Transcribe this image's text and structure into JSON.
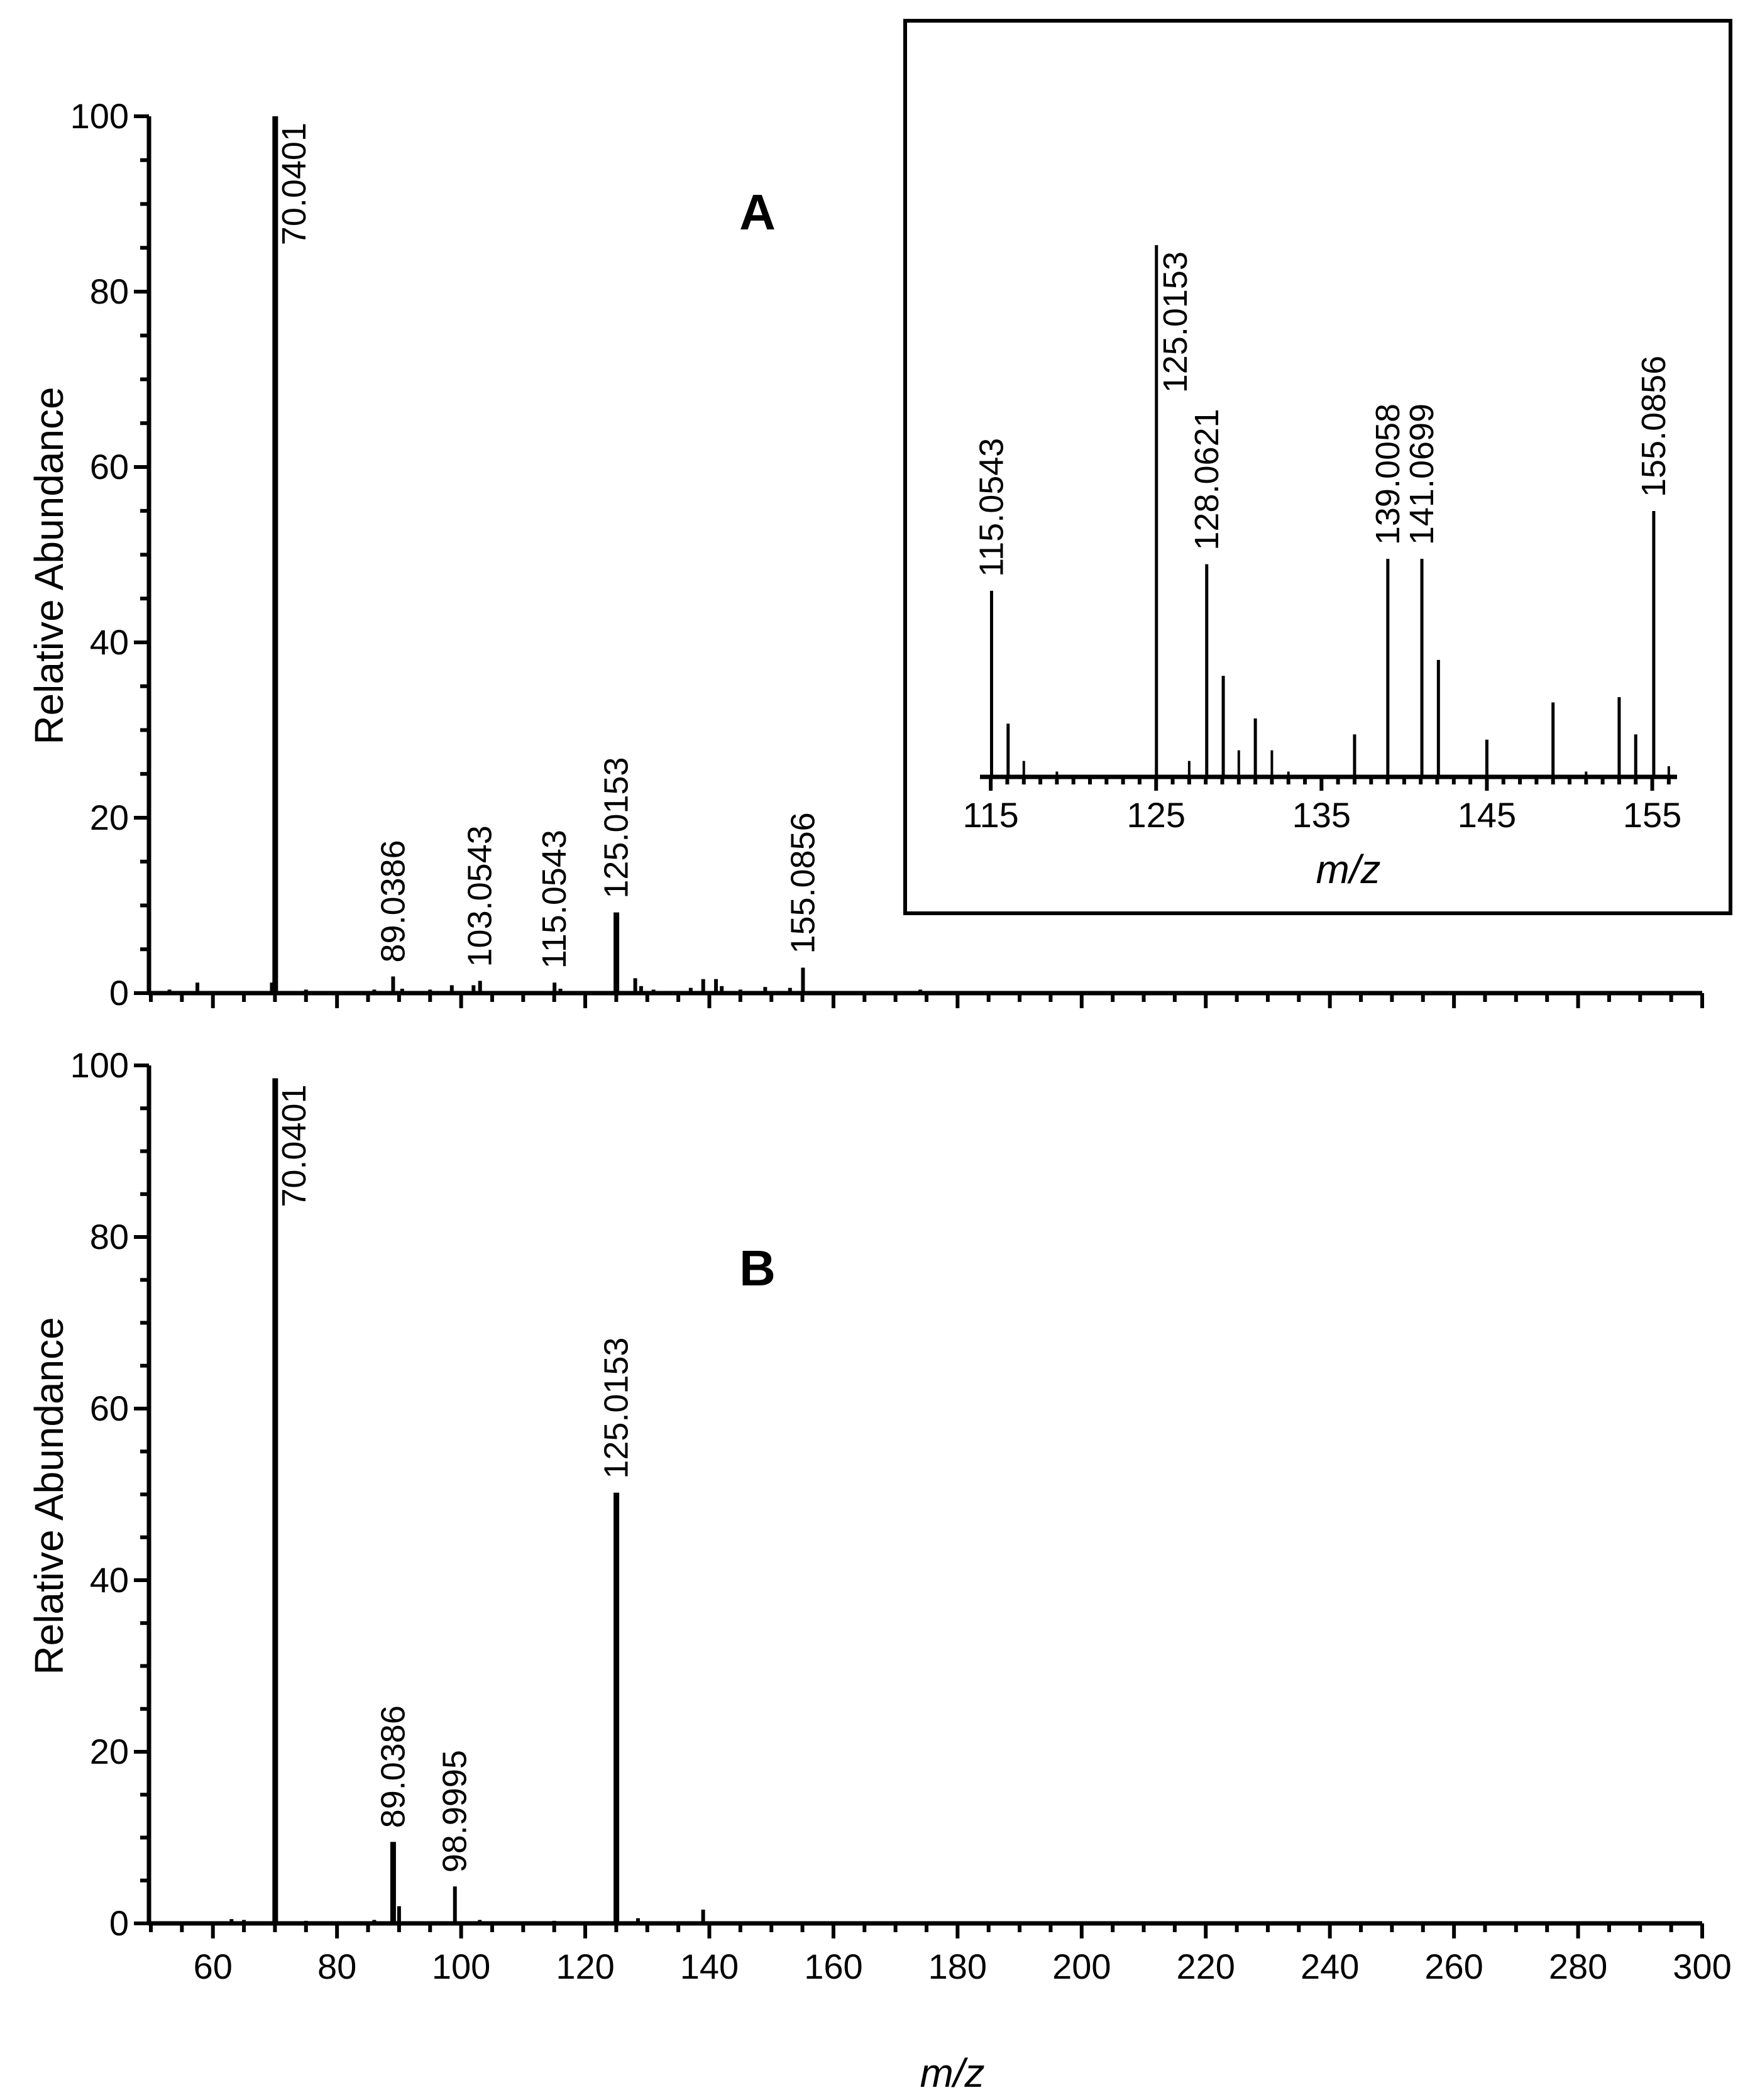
{
  "chart_data": [
    {
      "id": "A",
      "type": "bar",
      "panel_label": "A",
      "ylabel": "Relative Abundance",
      "xlabel": "",
      "xlim": [
        50,
        300
      ],
      "ylim": [
        0,
        100
      ],
      "y_ticks": [
        "0",
        "20",
        "40",
        "60",
        "80",
        "100"
      ],
      "x_ticks": [],
      "peaks": [
        {
          "mz": 53,
          "intensity": 0.4
        },
        {
          "mz": 57.5,
          "intensity": 1.2
        },
        {
          "mz": 69.5,
          "intensity": 1.2
        },
        {
          "mz": 70.04,
          "intensity": 100
        },
        {
          "mz": 75,
          "intensity": 0.4
        },
        {
          "mz": 86,
          "intensity": 0.4
        },
        {
          "mz": 89.04,
          "intensity": 1.9
        },
        {
          "mz": 90.5,
          "intensity": 0.5
        },
        {
          "mz": 95,
          "intensity": 0.4
        },
        {
          "mz": 98.5,
          "intensity": 0.9
        },
        {
          "mz": 102,
          "intensity": 0.9
        },
        {
          "mz": 103.05,
          "intensity": 1.4
        },
        {
          "mz": 115.05,
          "intensity": 1.2
        },
        {
          "mz": 116,
          "intensity": 0.5
        },
        {
          "mz": 125.02,
          "intensity": 9.2
        },
        {
          "mz": 128.06,
          "intensity": 1.7
        },
        {
          "mz": 129,
          "intensity": 0.8
        },
        {
          "mz": 131,
          "intensity": 0.4
        },
        {
          "mz": 137,
          "intensity": 0.6
        },
        {
          "mz": 139.01,
          "intensity": 1.6
        },
        {
          "mz": 141.07,
          "intensity": 1.6
        },
        {
          "mz": 142,
          "intensity": 0.8
        },
        {
          "mz": 145,
          "intensity": 0.4
        },
        {
          "mz": 149,
          "intensity": 0.7
        },
        {
          "mz": 153,
          "intensity": 0.6
        },
        {
          "mz": 155.09,
          "intensity": 2.9
        },
        {
          "mz": 174,
          "intensity": 0.4
        }
      ],
      "labels": [
        {
          "text": "70.0401",
          "mz": 70.04,
          "intensity": 100
        },
        {
          "text": "89.0386",
          "mz": 89.04,
          "intensity": 1.9
        },
        {
          "text": "103.0543",
          "mz": 103.05,
          "intensity": 1.4
        },
        {
          "text": "115.0543",
          "mz": 115.05,
          "intensity": 1.2
        },
        {
          "text": "125.0153",
          "mz": 125.02,
          "intensity": 9.2
        },
        {
          "text": "155.0856",
          "mz": 155.09,
          "intensity": 2.9
        }
      ]
    },
    {
      "id": "A-inset",
      "type": "bar",
      "panel_label": "",
      "ylabel": "",
      "xlabel": "m/z",
      "xlim": [
        114.5,
        156.5
      ],
      "ylim": [
        0,
        100
      ],
      "x_ticks": [
        "115",
        "125",
        "135",
        "145",
        "155"
      ],
      "peaks": [
        {
          "mz": 115.05,
          "intensity": 35
        },
        {
          "mz": 116.05,
          "intensity": 10
        },
        {
          "mz": 117,
          "intensity": 3
        },
        {
          "mz": 119,
          "intensity": 1
        },
        {
          "mz": 125.02,
          "intensity": 100
        },
        {
          "mz": 127,
          "intensity": 3
        },
        {
          "mz": 128.06,
          "intensity": 40
        },
        {
          "mz": 129.06,
          "intensity": 19
        },
        {
          "mz": 130,
          "intensity": 5
        },
        {
          "mz": 131,
          "intensity": 11
        },
        {
          "mz": 132,
          "intensity": 5
        },
        {
          "mz": 133,
          "intensity": 1
        },
        {
          "mz": 137,
          "intensity": 8
        },
        {
          "mz": 139.01,
          "intensity": 41
        },
        {
          "mz": 141.07,
          "intensity": 41
        },
        {
          "mz": 142.07,
          "intensity": 22
        },
        {
          "mz": 145,
          "intensity": 7
        },
        {
          "mz": 149,
          "intensity": 14
        },
        {
          "mz": 151,
          "intensity": 1
        },
        {
          "mz": 153,
          "intensity": 15
        },
        {
          "mz": 154,
          "intensity": 8
        },
        {
          "mz": 155.09,
          "intensity": 50
        },
        {
          "mz": 156,
          "intensity": 2
        }
      ],
      "labels": [
        {
          "text": "115.0543",
          "mz": 115.05,
          "intensity": 35
        },
        {
          "text": "125.0153",
          "mz": 125.02,
          "intensity": 100
        },
        {
          "text": "128.0621",
          "mz": 128.06,
          "intensity": 40
        },
        {
          "text": "139.0058",
          "mz": 139.01,
          "intensity": 41
        },
        {
          "text": "141.0699",
          "mz": 141.07,
          "intensity": 41
        },
        {
          "text": "155.0856",
          "mz": 155.09,
          "intensity": 50
        }
      ]
    },
    {
      "id": "B",
      "type": "bar",
      "panel_label": "B",
      "ylabel": "Relative Abundance",
      "xlabel": "m/z",
      "xlim": [
        50,
        300
      ],
      "ylim": [
        0,
        100
      ],
      "y_ticks": [
        "0",
        "20",
        "40",
        "60",
        "80",
        "100"
      ],
      "x_ticks": [
        "60",
        "80",
        "100",
        "120",
        "140",
        "160",
        "180",
        "200",
        "220",
        "240",
        "260",
        "280",
        "300"
      ],
      "peaks": [
        {
          "mz": 63,
          "intensity": 0.5
        },
        {
          "mz": 65,
          "intensity": 0.4
        },
        {
          "mz": 70.04,
          "intensity": 98.5
        },
        {
          "mz": 75,
          "intensity": 0.3
        },
        {
          "mz": 86,
          "intensity": 0.4
        },
        {
          "mz": 89.04,
          "intensity": 9.5
        },
        {
          "mz": 90,
          "intensity": 2
        },
        {
          "mz": 99,
          "intensity": 4.3
        },
        {
          "mz": 103,
          "intensity": 0.4
        },
        {
          "mz": 115,
          "intensity": 0.3
        },
        {
          "mz": 125.02,
          "intensity": 50.2
        },
        {
          "mz": 128.5,
          "intensity": 0.6
        },
        {
          "mz": 139,
          "intensity": 1.6
        }
      ],
      "labels": [
        {
          "text": "70.0401",
          "mz": 70.04,
          "intensity": 98.5
        },
        {
          "text": "89.0386",
          "mz": 89.04,
          "intensity": 9.5
        },
        {
          "text": "98.9995",
          "mz": 99,
          "intensity": 4.3
        },
        {
          "text": "125.0153",
          "mz": 125.02,
          "intensity": 50.2
        }
      ]
    }
  ]
}
